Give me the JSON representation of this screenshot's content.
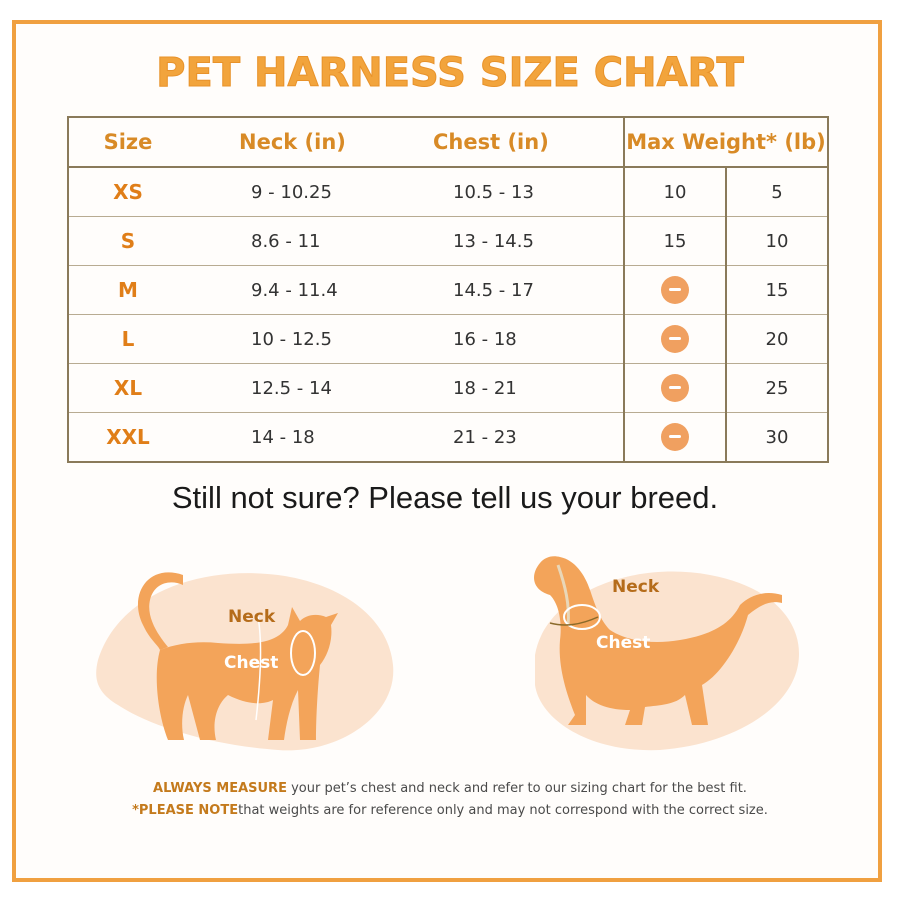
{
  "title": "PET HARNESS SIZE CHART",
  "table": {
    "headers": {
      "size": "Size",
      "neck": "Neck (in)",
      "chest": "Chest (in)",
      "max_weight": "Max Weight* (lb)"
    },
    "rows": [
      {
        "size": "XS",
        "neck": "9 - 10.25",
        "chest": "10.5 - 13",
        "weight_1": "10",
        "weight_2": "5"
      },
      {
        "size": "S",
        "neck": "8.6 - 11",
        "chest": "13 - 14.5",
        "weight_1": "15",
        "weight_2": "10"
      },
      {
        "size": "M",
        "neck": "9.4 - 11.4",
        "chest": "14.5 - 17",
        "weight_1_icon": "minus-circle-icon",
        "weight_2": "15"
      },
      {
        "size": "L",
        "neck": "10 - 12.5",
        "chest": "16 - 18",
        "weight_1_icon": "minus-circle-icon",
        "weight_2": "20"
      },
      {
        "size": "XL",
        "neck": "12.5 - 14",
        "chest": "18 - 21",
        "weight_1_icon": "minus-circle-icon",
        "weight_2": "25"
      },
      {
        "size": "XXL",
        "neck": "14 - 18",
        "chest": "21 - 23",
        "weight_1_icon": "minus-circle-icon",
        "weight_2": "30"
      }
    ]
  },
  "prompt": "Still not sure? Please tell us your breed.",
  "cat_illustration": {
    "icon": "cat-silhouette-icon",
    "neck_label": "Neck",
    "chest_label": "Chest"
  },
  "dog_illustration": {
    "icon": "dog-silhouette-icon",
    "neck_label": "Neck",
    "chest_label": "Chest"
  },
  "notes": {
    "line1_emphasis": "ALWAYS MEASURE",
    "line1_rest": " your pet’s chest and neck and refer to our sizing chart for the best fit.",
    "line2_prefix": "*",
    "line2_emphasis": "PLEASE NOTE",
    "line2_rest": "that weights are for reference only and may not correspond with the correct size."
  },
  "colors": {
    "accent": "#f2a43c",
    "accent_dark": "#e07e18",
    "frame": "#f0a040",
    "silhouette": "#f3a45a",
    "blob": "#fbe3cf",
    "table_border": "#8a7a5a"
  }
}
